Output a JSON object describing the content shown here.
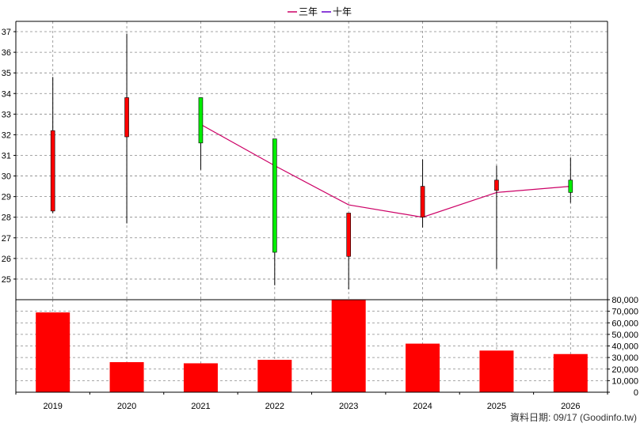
{
  "legend": {
    "three_year": "三年",
    "ten_year": "十年"
  },
  "colors": {
    "up": "#ff0000",
    "down": "#00ee00",
    "ma_three_year": "#cc0066",
    "ma_ten_year": "#6600cc",
    "volume": "#ff0000",
    "grid": "#888888"
  },
  "footer": {
    "text": "資料日期: 09/17  (Goodinfo.tw)"
  },
  "chart_data": {
    "type": "candlestick",
    "categories": [
      "2019",
      "2020",
      "2021",
      "2022",
      "2023",
      "2024",
      "2025",
      "2026"
    ],
    "price_axis": {
      "ylim": [
        24,
        37.5
      ],
      "ticks": [
        25,
        26,
        27,
        28,
        29,
        30,
        31,
        32,
        33,
        34,
        35,
        36,
        37
      ]
    },
    "volume_axis": {
      "ylim": [
        0,
        80000
      ],
      "ticks": [
        0,
        10000,
        20000,
        30000,
        40000,
        50000,
        60000,
        70000,
        80000
      ],
      "tick_labels": [
        "0",
        "10,000",
        "20,000",
        "30,000",
        "40,000",
        "50,000",
        "60,000",
        "70,000",
        "80,000"
      ]
    },
    "candles": [
      {
        "open": 28.3,
        "high": 34.8,
        "low": 28.2,
        "close": 32.2
      },
      {
        "open": 31.9,
        "high": 36.9,
        "low": 27.7,
        "close": 33.8
      },
      {
        "open": 33.8,
        "high": 33.8,
        "low": 30.3,
        "close": 31.6
      },
      {
        "open": 31.8,
        "high": 31.8,
        "low": 24.7,
        "close": 26.3
      },
      {
        "open": 26.1,
        "high": 28.2,
        "low": 24.5,
        "close": 28.2
      },
      {
        "open": 28.0,
        "high": 30.8,
        "low": 27.5,
        "close": 29.5
      },
      {
        "open": 29.3,
        "high": 30.5,
        "low": 25.5,
        "close": 29.8
      },
      {
        "open": 29.8,
        "high": 30.9,
        "low": 28.7,
        "close": 29.2
      }
    ],
    "ma_three_year": [
      null,
      null,
      32.5,
      30.5,
      28.6,
      28.0,
      29.2,
      29.5
    ],
    "volume": [
      69000,
      26000,
      25000,
      28000,
      81000,
      42000,
      36000,
      33000
    ],
    "grid": true,
    "legend_position": "top-center"
  }
}
